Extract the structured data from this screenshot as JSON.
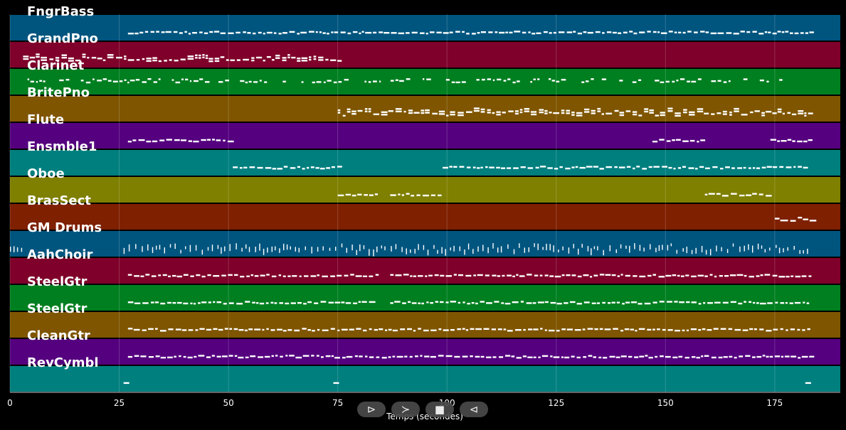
{
  "tracks": [
    {
      "name": "FngrBass",
      "color": "#00557f"
    },
    {
      "name": "GrandPno",
      "color": "#7f002a"
    },
    {
      "name": "Clarinet",
      "color": "#007f20"
    },
    {
      "name": "BritePno",
      "color": "#7f5500"
    },
    {
      "name": "Flute",
      "color": "#55007f"
    },
    {
      "name": "Ensmble1",
      "color": "#007f7f"
    },
    {
      "name": "Oboe",
      "color": "#7f7f00"
    },
    {
      "name": "BrasSect",
      "color": "#7f2000"
    },
    {
      "name": "GM Drums",
      "color": "#00557f"
    },
    {
      "name": "AahChoir",
      "color": "#7f002a"
    },
    {
      "name": "SteelGtr",
      "color": "#007f20"
    },
    {
      "name": "SteelGtr",
      "color": "#7f5500"
    },
    {
      "name": "CleanGtr",
      "color": "#55007f"
    },
    {
      "name": "RevCymbl",
      "color": "#007f7f"
    }
  ],
  "chart_data": {
    "type": "piano-roll",
    "xlabel": "Temps (secondes)",
    "xlim": [
      0,
      190
    ],
    "xticks": [
      0,
      25,
      50,
      75,
      100,
      125,
      150,
      175
    ],
    "grid": true,
    "note_activity": [
      {
        "track": "FngrBass",
        "spans": [
          [
            27,
            183
          ]
        ],
        "style": "continuous"
      },
      {
        "track": "GrandPno",
        "spans": [
          [
            3,
            75
          ]
        ],
        "style": "dense"
      },
      {
        "track": "Clarinet",
        "spans": [
          [
            4,
            177
          ]
        ],
        "style": "phrases"
      },
      {
        "track": "BritePno",
        "spans": [
          [
            75,
            183
          ]
        ],
        "style": "dense"
      },
      {
        "track": "Flute",
        "spans": [
          [
            27,
            51
          ],
          [
            147,
            159
          ],
          [
            174,
            183
          ]
        ],
        "style": "continuous"
      },
      {
        "track": "Ensmble1",
        "spans": [
          [
            51,
            75
          ],
          [
            99,
            183
          ]
        ],
        "style": "continuous"
      },
      {
        "track": "Oboe",
        "spans": [
          [
            75,
            84
          ],
          [
            87,
            99
          ],
          [
            159,
            173
          ]
        ],
        "style": "continuous"
      },
      {
        "track": "BrasSect",
        "spans": [
          [
            175,
            183
          ]
        ],
        "style": "chords"
      },
      {
        "track": "GM Drums",
        "spans": [
          [
            0,
            3
          ],
          [
            26,
            183
          ]
        ],
        "style": "percussion"
      },
      {
        "track": "AahChoir",
        "spans": [
          [
            27,
            84
          ],
          [
            87,
            183
          ]
        ],
        "style": "continuous"
      },
      {
        "track": "SteelGtr",
        "spans": [
          [
            27,
            84
          ],
          [
            87,
            183
          ]
        ],
        "style": "continuous"
      },
      {
        "track": "SteelGtr",
        "spans": [
          [
            27,
            183
          ]
        ],
        "style": "continuous"
      },
      {
        "track": "CleanGtr",
        "spans": [
          [
            27,
            183
          ]
        ],
        "style": "continuous"
      },
      {
        "track": "RevCymbl",
        "spans": [
          [
            26,
            27
          ],
          [
            74,
            75
          ],
          [
            182,
            183
          ]
        ],
        "style": "hits"
      }
    ]
  },
  "controls": [
    {
      "icon": "play-outline-icon",
      "glyph": "⊳"
    },
    {
      "icon": "forward-icon",
      "glyph": "≻"
    },
    {
      "icon": "stop-icon",
      "glyph": "■"
    },
    {
      "icon": "rewind-icon",
      "glyph": "⊲"
    }
  ]
}
